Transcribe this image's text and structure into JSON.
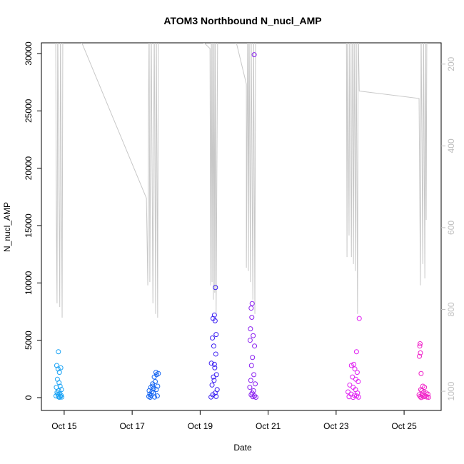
{
  "chart_data": {
    "type": "scatter",
    "title": "ATOM3 Northbound N_nucl_AMP",
    "xlabel": "Date",
    "ylabel": "N_nucl_AMP",
    "xlim": [
      14.33,
      26.09
    ],
    "xticks": [
      {
        "value": 15,
        "label": "Oct 15"
      },
      {
        "value": 17,
        "label": "Oct 17"
      },
      {
        "value": 19,
        "label": "Oct 19"
      },
      {
        "value": 21,
        "label": "Oct 21"
      },
      {
        "value": 23,
        "label": "Oct 23"
      },
      {
        "value": 25,
        "label": "Oct 25"
      }
    ],
    "ylim": [
      -1120,
      30934
    ],
    "yticks": [
      0,
      5000,
      10000,
      15000,
      20000,
      25000,
      30000
    ],
    "y2lim": [
      1047,
      148
    ],
    "y2ticks": [
      200,
      400,
      600,
      800,
      1000
    ],
    "y2color": "#bebebe",
    "grid": false,
    "series": [
      {
        "color": "#1aa3f5",
        "x": [
          14.83,
          14.78,
          14.82,
          14.86,
          14.9,
          14.8,
          14.85,
          14.88,
          14.77,
          14.92,
          14.84,
          14.79,
          14.87,
          14.81,
          14.91,
          14.76,
          14.89,
          14.83,
          14.93,
          14.86
        ],
        "values": [
          4000,
          2800,
          2500,
          2200,
          2600,
          1600,
          1300,
          1000,
          900,
          700,
          600,
          450,
          350,
          300,
          200,
          150,
          100,
          80,
          50,
          20
        ]
      },
      {
        "color": "#1565f2",
        "x": [
          17.5,
          17.55,
          17.6,
          17.65,
          17.7,
          17.72,
          17.77,
          17.52,
          17.58,
          17.63,
          17.68,
          17.75,
          17.49,
          17.56,
          17.62,
          17.66,
          17.71,
          17.74,
          17.53,
          17.6
        ],
        "values": [
          600,
          900,
          1200,
          1800,
          2200,
          2000,
          2100,
          300,
          500,
          800,
          1400,
          1000,
          100,
          200,
          400,
          50,
          700,
          150,
          30,
          1000
        ]
      },
      {
        "color": "#3a1ef2",
        "x": [
          19.45,
          19.42,
          19.38,
          19.44,
          19.47,
          19.36,
          19.4,
          19.46,
          19.33,
          19.43,
          19.48,
          19.39,
          19.41,
          19.35,
          19.5,
          19.44,
          19.37,
          19.47,
          19.32,
          19.42
        ],
        "values": [
          9600,
          7200,
          6900,
          6700,
          5500,
          5200,
          4500,
          3800,
          3000,
          2600,
          2000,
          1800,
          1500,
          1100,
          700,
          400,
          250,
          100,
          50,
          2900
        ]
      },
      {
        "color": "#8a20f0",
        "x": [
          20.59,
          20.53,
          20.5,
          20.52,
          20.48,
          20.56,
          20.47,
          20.6,
          20.54,
          20.51,
          20.58,
          20.49,
          20.62,
          20.46,
          20.57,
          20.53,
          20.5,
          20.6,
          20.55,
          20.64
        ],
        "values": [
          29900,
          8200,
          7800,
          7000,
          6000,
          5400,
          5000,
          4500,
          3500,
          2800,
          2000,
          1500,
          1200,
          900,
          600,
          400,
          250,
          150,
          80,
          30
        ]
      },
      {
        "color": "#e020f2",
        "x": [
          23.68,
          23.6,
          23.52,
          23.45,
          23.55,
          23.62,
          23.48,
          23.58,
          23.65,
          23.4,
          23.5,
          23.57,
          23.35,
          23.63,
          23.44,
          23.54,
          23.6,
          23.38,
          23.66,
          23.5
        ],
        "values": [
          6900,
          4000,
          2900,
          2800,
          2500,
          2200,
          1800,
          1600,
          1400,
          1100,
          900,
          700,
          500,
          400,
          300,
          200,
          150,
          80,
          40,
          20
        ]
      },
      {
        "color": "#f020c8",
        "x": [
          25.47,
          25.46,
          25.48,
          25.45,
          25.5,
          25.55,
          25.6,
          25.49,
          25.52,
          25.58,
          25.65,
          25.7,
          25.44,
          25.53,
          25.62,
          25.47,
          25.57,
          25.67,
          25.72,
          25.5
        ],
        "values": [
          4700,
          4500,
          3900,
          3600,
          2100,
          1000,
          900,
          700,
          600,
          500,
          400,
          300,
          250,
          200,
          150,
          100,
          80,
          50,
          30,
          10
        ]
      },
      {
        "type": "line",
        "axis": "y2",
        "color": "#c8c8c8",
        "x": [
          14.75,
          14.77,
          14.79,
          14.81,
          14.87,
          14.89,
          14.94,
          14.96,
          14.98,
          17.42,
          17.46,
          17.48,
          17.5,
          17.52,
          17.56,
          17.61,
          17.65,
          17.69,
          17.71,
          17.75,
          17.77,
          19.29,
          19.31,
          19.33,
          19.35,
          19.37,
          19.39,
          19.41,
          19.43,
          19.45,
          19.47,
          19.52,
          20.04,
          20.36,
          20.36,
          20.4,
          20.42,
          20.44,
          20.48,
          20.5,
          20.55,
          20.57,
          20.61,
          20.63,
          20.65,
          23.3,
          23.32,
          23.34,
          23.38,
          23.4,
          23.45,
          23.47,
          23.51,
          23.53,
          23.57,
          23.59,
          23.63,
          23.65,
          23.68,
          25.44,
          25.48,
          25.5,
          25.55,
          25.57,
          25.61,
          25.63,
          25.65,
          25.67
        ],
        "values": [
          100,
          575,
          785,
          100,
          794,
          100,
          820,
          100,
          40,
          528,
          741,
          305,
          100,
          733,
          100,
          785,
          100,
          811,
          100,
          820,
          40,
          162,
          741,
          100,
          733,
          100,
          776,
          100,
          759,
          100,
          811,
          40,
          139,
          249,
          698,
          100,
          706,
          100,
          733,
          100,
          776,
          100,
          811,
          100,
          40,
          40,
          672,
          100,
          619,
          100,
          672,
          100,
          689,
          100,
          706,
          100,
          811,
          100,
          266,
          284,
          741,
          100,
          689,
          100,
          724,
          100,
          581,
          100
        ]
      }
    ]
  }
}
